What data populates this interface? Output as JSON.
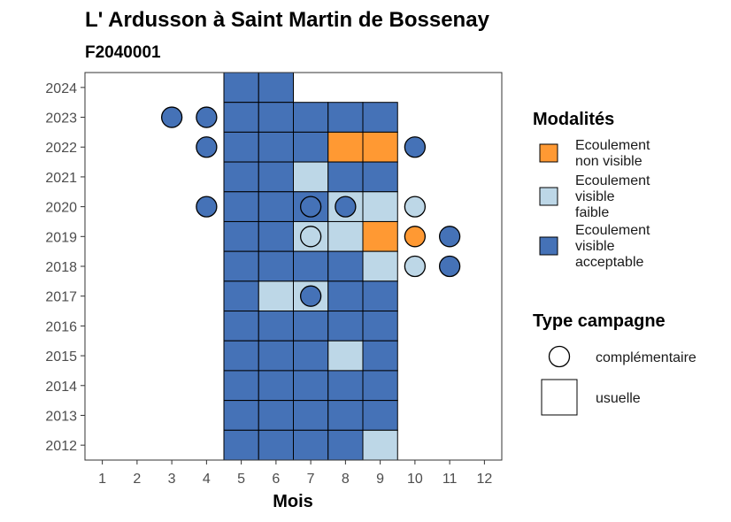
{
  "chart_data": {
    "type": "heatmap",
    "title": "L' Ardusson à Saint Martin de Bossenay",
    "subtitle": "F2040001",
    "xlabel": "Mois",
    "ylabel": "",
    "x_ticks": [
      1,
      2,
      3,
      4,
      5,
      6,
      7,
      8,
      9,
      10,
      11,
      12
    ],
    "y_ticks": [
      2012,
      2013,
      2014,
      2015,
      2016,
      2017,
      2018,
      2019,
      2020,
      2021,
      2022,
      2023,
      2024
    ],
    "xlim": [
      0.5,
      12.5
    ],
    "ylim": [
      2011.5,
      2024.5
    ],
    "grid": false,
    "legend_position": "right",
    "colors": {
      "non_visible": "#FF9933",
      "faible": "#BDD7E7",
      "acceptable": "#4572B7"
    },
    "legend_modalites": {
      "title": "Modalités",
      "entries": [
        {
          "key": "non_visible",
          "lines": [
            "Ecoulement",
            "non visible"
          ]
        },
        {
          "key": "faible",
          "lines": [
            "Ecoulement",
            "visible",
            "faible"
          ]
        },
        {
          "key": "acceptable",
          "lines": [
            "Ecoulement",
            "visible",
            "acceptable"
          ]
        }
      ]
    },
    "legend_type": {
      "title": "Type campagne",
      "entries": [
        {
          "shape": "circle",
          "label": "complémentaire"
        },
        {
          "shape": "square",
          "label": "usuelle"
        }
      ]
    },
    "usuelle": [
      {
        "year": 2024,
        "months": {
          "5": "acceptable",
          "6": "acceptable"
        }
      },
      {
        "year": 2023,
        "months": {
          "5": "acceptable",
          "6": "acceptable",
          "7": "acceptable",
          "8": "acceptable",
          "9": "acceptable"
        }
      },
      {
        "year": 2022,
        "months": {
          "5": "acceptable",
          "6": "acceptable",
          "7": "acceptable",
          "8": "non_visible",
          "9": "non_visible"
        }
      },
      {
        "year": 2021,
        "months": {
          "5": "acceptable",
          "6": "acceptable",
          "7": "faible",
          "8": "acceptable",
          "9": "acceptable"
        }
      },
      {
        "year": 2020,
        "months": {
          "5": "acceptable",
          "6": "acceptable",
          "7": "acceptable",
          "8": "faible",
          "9": "faible"
        }
      },
      {
        "year": 2019,
        "months": {
          "5": "acceptable",
          "6": "acceptable",
          "7": "faible",
          "8": "faible",
          "9": "non_visible"
        }
      },
      {
        "year": 2018,
        "months": {
          "5": "acceptable",
          "6": "acceptable",
          "7": "acceptable",
          "8": "acceptable",
          "9": "faible"
        }
      },
      {
        "year": 2017,
        "months": {
          "5": "acceptable",
          "6": "faible",
          "7": "faible",
          "8": "acceptable",
          "9": "acceptable"
        }
      },
      {
        "year": 2016,
        "months": {
          "5": "acceptable",
          "6": "acceptable",
          "7": "acceptable",
          "8": "acceptable",
          "9": "acceptable"
        }
      },
      {
        "year": 2015,
        "months": {
          "5": "acceptable",
          "6": "acceptable",
          "7": "acceptable",
          "8": "faible",
          "9": "acceptable"
        }
      },
      {
        "year": 2014,
        "months": {
          "5": "acceptable",
          "6": "acceptable",
          "7": "acceptable",
          "8": "acceptable",
          "9": "acceptable"
        }
      },
      {
        "year": 2013,
        "months": {
          "5": "acceptable",
          "6": "acceptable",
          "7": "acceptable",
          "8": "acceptable",
          "9": "acceptable"
        }
      },
      {
        "year": 2012,
        "months": {
          "5": "acceptable",
          "6": "acceptable",
          "7": "acceptable",
          "8": "acceptable",
          "9": "faible"
        }
      }
    ],
    "complementaire": [
      {
        "year": 2023,
        "month": 3,
        "modalite": "acceptable"
      },
      {
        "year": 2023,
        "month": 4,
        "modalite": "acceptable"
      },
      {
        "year": 2022,
        "month": 4,
        "modalite": "acceptable"
      },
      {
        "year": 2022,
        "month": 10,
        "modalite": "acceptable"
      },
      {
        "year": 2020,
        "month": 4,
        "modalite": "acceptable"
      },
      {
        "year": 2020,
        "month": 7,
        "modalite": "acceptable"
      },
      {
        "year": 2020,
        "month": 8,
        "modalite": "acceptable"
      },
      {
        "year": 2020,
        "month": 10,
        "modalite": "faible"
      },
      {
        "year": 2019,
        "month": 7,
        "modalite": "faible"
      },
      {
        "year": 2019,
        "month": 10,
        "modalite": "non_visible"
      },
      {
        "year": 2019,
        "month": 11,
        "modalite": "acceptable"
      },
      {
        "year": 2018,
        "month": 10,
        "modalite": "faible"
      },
      {
        "year": 2018,
        "month": 11,
        "modalite": "acceptable"
      },
      {
        "year": 2017,
        "month": 7,
        "modalite": "acceptable"
      }
    ]
  }
}
